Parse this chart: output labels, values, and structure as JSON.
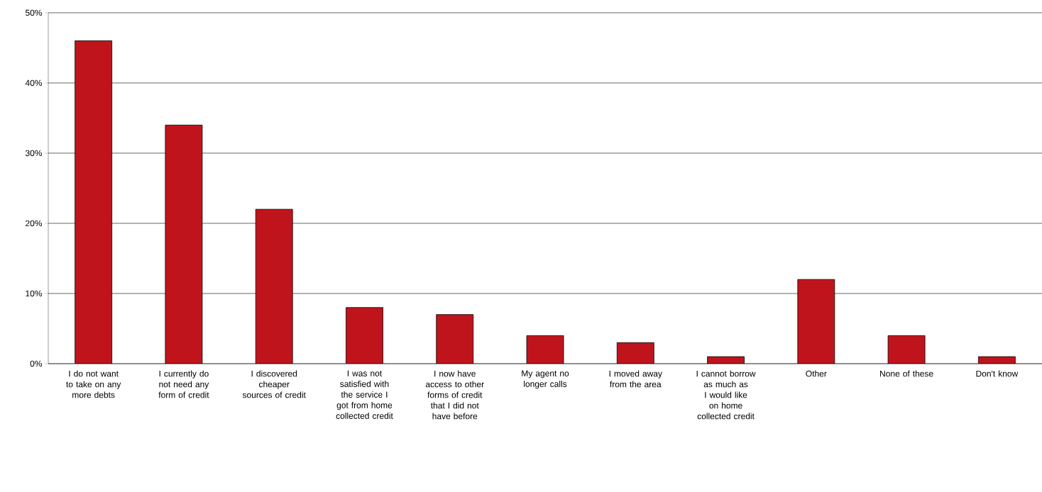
{
  "chart_data": {
    "type": "bar",
    "categories": [
      "I do not want to take on any more debts",
      "I currently do not need any form of credit",
      "I discovered cheaper sources of credit",
      "I was not satisfied with the service I got from home collected credit",
      "I now have access to other forms of credit that I did not have before",
      "My agent no longer calls",
      "I moved away from the area",
      "I cannot borrow as much as I would like on home collected credit",
      "Other",
      "None of these",
      "Don't know"
    ],
    "values": [
      46,
      34,
      22,
      8,
      7,
      4,
      3,
      1,
      12,
      4,
      1
    ],
    "color": "#c0141c",
    "ylim": [
      0,
      50
    ],
    "yticks": [
      {
        "value": 0,
        "label": "0%"
      },
      {
        "value": 10,
        "label": "10%"
      },
      {
        "value": 20,
        "label": "20%"
      },
      {
        "value": 30,
        "label": "30%"
      },
      {
        "value": 40,
        "label": "40%"
      },
      {
        "value": 50,
        "label": "50%"
      }
    ],
    "grid": "y"
  }
}
